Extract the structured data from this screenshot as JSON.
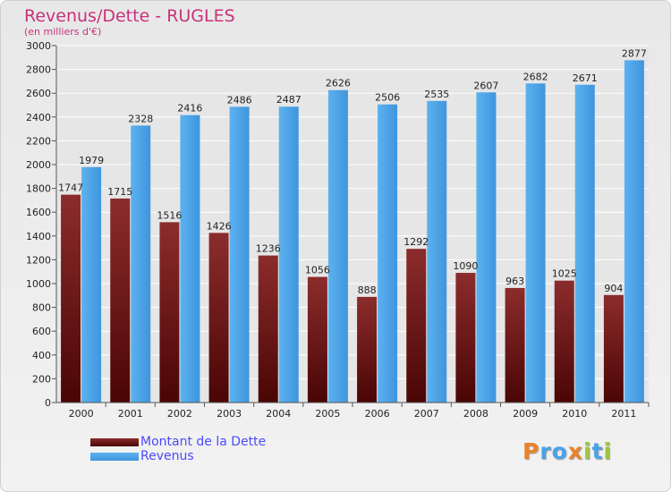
{
  "title": "Revenus/Dette - RUGLES",
  "subtitle": "(en milliers d'€)",
  "colors": {
    "dette": "#7a1f1f",
    "revenus": "#4aa3e8",
    "title": "#c8327a",
    "legend_text": "#4a4aff"
  },
  "legend": {
    "dette_label": "Montant de la Dette",
    "revenus_label": "Revenus"
  },
  "logo": {
    "text": "Proxiti",
    "letter_colors": [
      "#e9832a",
      "#4aa3e8",
      "#4aa3e8",
      "#e9832a",
      "#9bc83a",
      "#4aa3e8",
      "#9bc83a"
    ]
  },
  "chart_data": {
    "type": "bar",
    "title": "Revenus/Dette - RUGLES",
    "subtitle": "(en milliers d'€)",
    "categories": [
      "2000",
      "2001",
      "2002",
      "2003",
      "2004",
      "2005",
      "2006",
      "2007",
      "2008",
      "2009",
      "2010",
      "2011"
    ],
    "series": [
      {
        "name": "Montant de la Dette",
        "values": [
          1747,
          1715,
          1516,
          1426,
          1236,
          1056,
          888,
          1292,
          1090,
          963,
          1025,
          904
        ]
      },
      {
        "name": "Revenus",
        "values": [
          1979,
          2328,
          2416,
          2486,
          2487,
          2626,
          2506,
          2535,
          2607,
          2682,
          2671,
          2877
        ]
      }
    ],
    "ylim": [
      0,
      3000
    ],
    "yticks": [
      0,
      200,
      400,
      600,
      800,
      1000,
      1200,
      1400,
      1600,
      1800,
      2000,
      2200,
      2400,
      2600,
      2800,
      3000
    ],
    "grid": true,
    "legend_position": "bottom-left"
  }
}
